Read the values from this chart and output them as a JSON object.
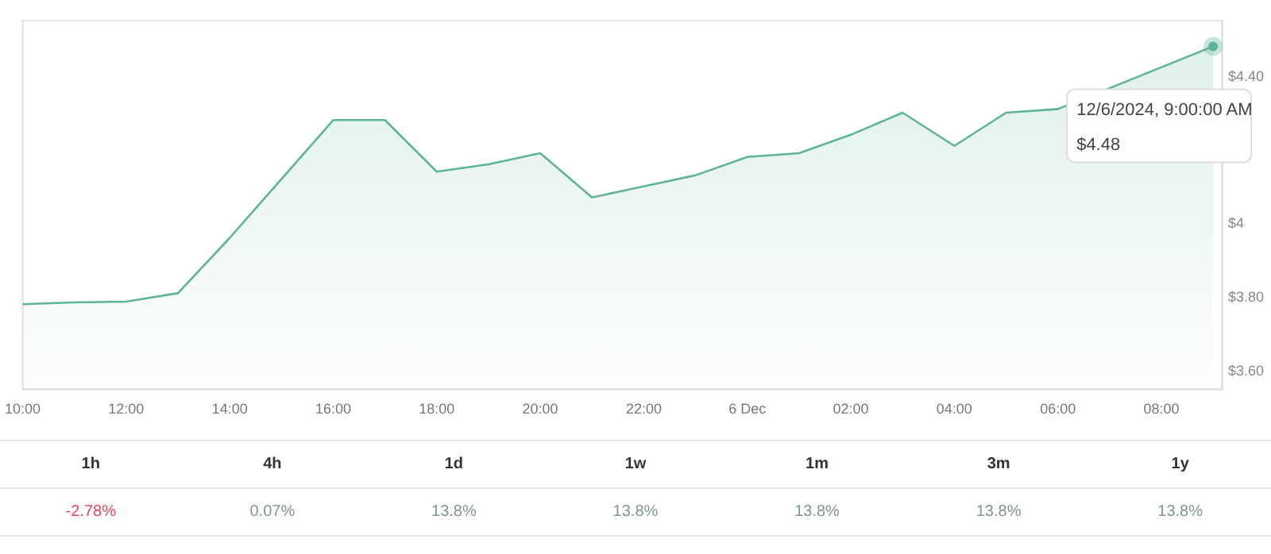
{
  "chart_data": [
    {
      "type": "area",
      "x": [
        "2024-12-05T10:00",
        "2024-12-05T11:00",
        "2024-12-05T12:00",
        "2024-12-05T13:00",
        "2024-12-05T14:00",
        "2024-12-05T15:00",
        "2024-12-05T16:00",
        "2024-12-05T17:00",
        "2024-12-05T18:00",
        "2024-12-05T19:00",
        "2024-12-05T20:00",
        "2024-12-05T21:00",
        "2024-12-05T22:00",
        "2024-12-05T23:00",
        "2024-12-06T00:00",
        "2024-12-06T01:00",
        "2024-12-06T02:00",
        "2024-12-06T03:00",
        "2024-12-06T04:00",
        "2024-12-06T05:00",
        "2024-12-06T06:00",
        "2024-12-06T07:00",
        "2024-12-06T08:00",
        "2024-12-06T09:00"
      ],
      "series": [
        {
          "color": "#5fb39a",
          "values": [
            3.78,
            3.785,
            3.787,
            3.81,
            3.96,
            4.12,
            4.28,
            4.28,
            4.14,
            4.16,
            4.19,
            4.07,
            4.1,
            4.13,
            4.18,
            4.19,
            4.24,
            4.3,
            4.21,
            4.3,
            4.31,
            null,
            null,
            4.48
          ]
        }
      ],
      "xlim": [
        "2024-12-05T10:00",
        "2024-12-06T09:10"
      ],
      "xticks": [
        {
          "value": "2024-12-05T10:00",
          "label": "10:00"
        },
        {
          "value": "2024-12-05T12:00",
          "label": "12:00"
        },
        {
          "value": "2024-12-05T14:00",
          "label": "14:00"
        },
        {
          "value": "2024-12-05T16:00",
          "label": "16:00"
        },
        {
          "value": "2024-12-05T18:00",
          "label": "18:00"
        },
        {
          "value": "2024-12-05T20:00",
          "label": "20:00"
        },
        {
          "value": "2024-12-05T22:00",
          "label": "22:00"
        },
        {
          "value": "2024-12-06T00:00",
          "label": "6 Dec"
        },
        {
          "value": "2024-12-06T02:00",
          "label": "02:00"
        },
        {
          "value": "2024-12-06T04:00",
          "label": "04:00"
        },
        {
          "value": "2024-12-06T06:00",
          "label": "06:00"
        },
        {
          "value": "2024-12-06T08:00",
          "label": "08:00"
        }
      ],
      "ylim": [
        3.55,
        4.55
      ],
      "yticks": [
        {
          "value": 3.6,
          "label": "$3.60"
        },
        {
          "value": 3.8,
          "label": "$3.80"
        },
        {
          "value": 4,
          "label": "$4"
        },
        {
          "value": 4.4,
          "label": "$4.40"
        }
      ],
      "grid": false,
      "marker": "none",
      "annotations": [
        "12/6/2024, 9:00:00 AM\n$4.48"
      ]
    },
    {
      "type": "other",
      "categories": [
        "1h",
        "4h",
        "1d",
        "1w",
        "1m",
        "3m",
        "1y"
      ],
      "value_labels": [
        "-2.78%",
        "0.07%",
        "13.8%",
        "13.8%",
        "13.8%",
        "13.8%",
        "13.8%"
      ],
      "colors": [
        "#e8455f",
        "#7f9a86",
        "#7f9a86",
        "#7f9a86",
        "#7f9a86",
        "#7f9a86",
        "#7f9a86"
      ]
    }
  ]
}
